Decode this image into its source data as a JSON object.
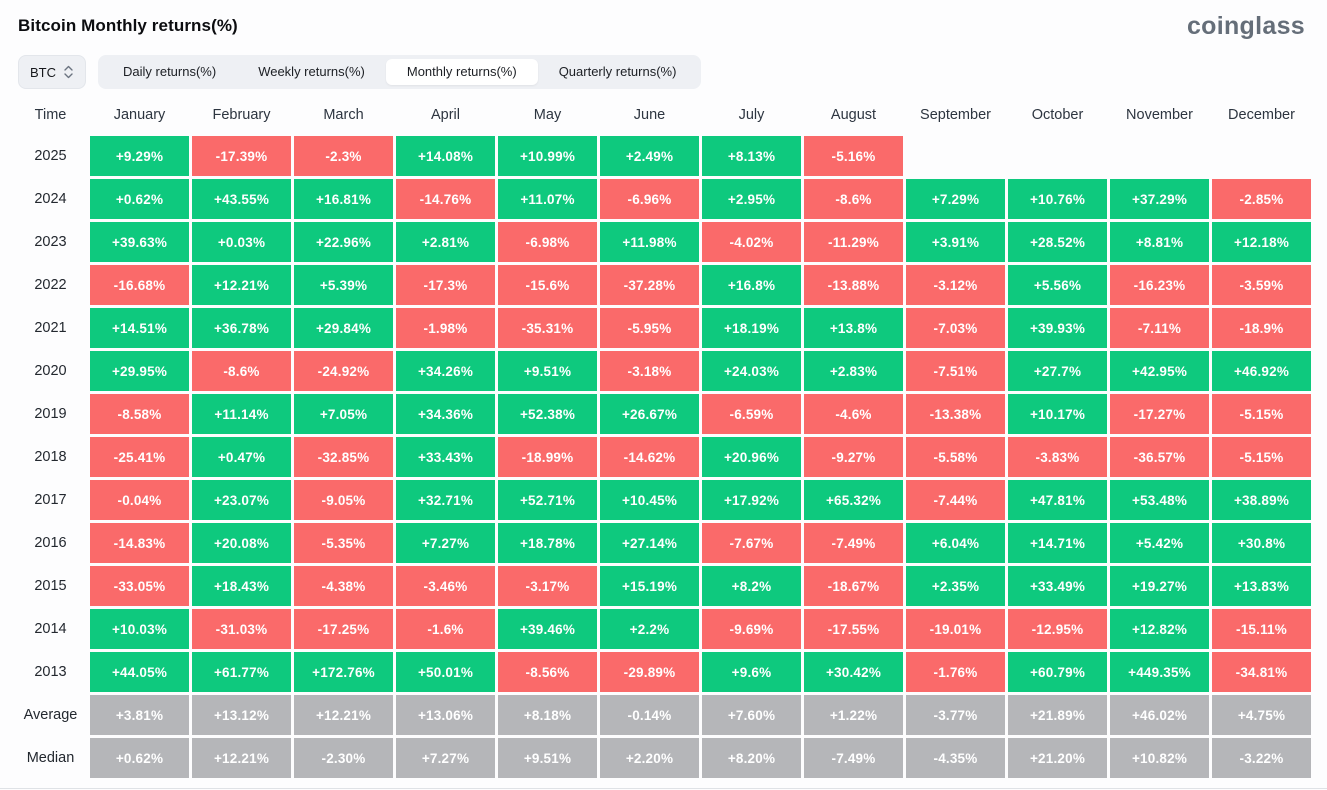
{
  "header": {
    "title": "Bitcoin Monthly returns(%)",
    "logo": "coinglass"
  },
  "controls": {
    "coin": "BTC",
    "tabs": [
      {
        "label": "Daily returns(%)",
        "active": false
      },
      {
        "label": "Weekly returns(%)",
        "active": false
      },
      {
        "label": "Monthly returns(%)",
        "active": true
      },
      {
        "label": "Quarterly returns(%)",
        "active": false
      }
    ]
  },
  "colors": {
    "positive": "#0ec97e",
    "negative": "#fa6a6a",
    "summary": "#b5b6b9"
  },
  "table": {
    "columns": [
      "Time",
      "January",
      "February",
      "March",
      "April",
      "May",
      "June",
      "July",
      "August",
      "September",
      "October",
      "November",
      "December"
    ],
    "rows": [
      {
        "label": "2025",
        "summary": false,
        "values": [
          "+9.29%",
          "-17.39%",
          "-2.3%",
          "+14.08%",
          "+10.99%",
          "+2.49%",
          "+8.13%",
          "-5.16%",
          "",
          "",
          "",
          ""
        ]
      },
      {
        "label": "2024",
        "summary": false,
        "values": [
          "+0.62%",
          "+43.55%",
          "+16.81%",
          "-14.76%",
          "+11.07%",
          "-6.96%",
          "+2.95%",
          "-8.6%",
          "+7.29%",
          "+10.76%",
          "+37.29%",
          "-2.85%"
        ]
      },
      {
        "label": "2023",
        "summary": false,
        "values": [
          "+39.63%",
          "+0.03%",
          "+22.96%",
          "+2.81%",
          "-6.98%",
          "+11.98%",
          "-4.02%",
          "-11.29%",
          "+3.91%",
          "+28.52%",
          "+8.81%",
          "+12.18%"
        ]
      },
      {
        "label": "2022",
        "summary": false,
        "values": [
          "-16.68%",
          "+12.21%",
          "+5.39%",
          "-17.3%",
          "-15.6%",
          "-37.28%",
          "+16.8%",
          "-13.88%",
          "-3.12%",
          "+5.56%",
          "-16.23%",
          "-3.59%"
        ]
      },
      {
        "label": "2021",
        "summary": false,
        "values": [
          "+14.51%",
          "+36.78%",
          "+29.84%",
          "-1.98%",
          "-35.31%",
          "-5.95%",
          "+18.19%",
          "+13.8%",
          "-7.03%",
          "+39.93%",
          "-7.11%",
          "-18.9%"
        ]
      },
      {
        "label": "2020",
        "summary": false,
        "values": [
          "+29.95%",
          "-8.6%",
          "-24.92%",
          "+34.26%",
          "+9.51%",
          "-3.18%",
          "+24.03%",
          "+2.83%",
          "-7.51%",
          "+27.7%",
          "+42.95%",
          "+46.92%"
        ]
      },
      {
        "label": "2019",
        "summary": false,
        "values": [
          "-8.58%",
          "+11.14%",
          "+7.05%",
          "+34.36%",
          "+52.38%",
          "+26.67%",
          "-6.59%",
          "-4.6%",
          "-13.38%",
          "+10.17%",
          "-17.27%",
          "-5.15%"
        ]
      },
      {
        "label": "2018",
        "summary": false,
        "values": [
          "-25.41%",
          "+0.47%",
          "-32.85%",
          "+33.43%",
          "-18.99%",
          "-14.62%",
          "+20.96%",
          "-9.27%",
          "-5.58%",
          "-3.83%",
          "-36.57%",
          "-5.15%"
        ]
      },
      {
        "label": "2017",
        "summary": false,
        "values": [
          "-0.04%",
          "+23.07%",
          "-9.05%",
          "+32.71%",
          "+52.71%",
          "+10.45%",
          "+17.92%",
          "+65.32%",
          "-7.44%",
          "+47.81%",
          "+53.48%",
          "+38.89%"
        ]
      },
      {
        "label": "2016",
        "summary": false,
        "values": [
          "-14.83%",
          "+20.08%",
          "-5.35%",
          "+7.27%",
          "+18.78%",
          "+27.14%",
          "-7.67%",
          "-7.49%",
          "+6.04%",
          "+14.71%",
          "+5.42%",
          "+30.8%"
        ]
      },
      {
        "label": "2015",
        "summary": false,
        "values": [
          "-33.05%",
          "+18.43%",
          "-4.38%",
          "-3.46%",
          "-3.17%",
          "+15.19%",
          "+8.2%",
          "-18.67%",
          "+2.35%",
          "+33.49%",
          "+19.27%",
          "+13.83%"
        ]
      },
      {
        "label": "2014",
        "summary": false,
        "values": [
          "+10.03%",
          "-31.03%",
          "-17.25%",
          "-1.6%",
          "+39.46%",
          "+2.2%",
          "-9.69%",
          "-17.55%",
          "-19.01%",
          "-12.95%",
          "+12.82%",
          "-15.11%"
        ]
      },
      {
        "label": "2013",
        "summary": false,
        "values": [
          "+44.05%",
          "+61.77%",
          "+172.76%",
          "+50.01%",
          "-8.56%",
          "-29.89%",
          "+9.6%",
          "+30.42%",
          "-1.76%",
          "+60.79%",
          "+449.35%",
          "-34.81%"
        ]
      },
      {
        "label": "Average",
        "summary": true,
        "values": [
          "+3.81%",
          "+13.12%",
          "+12.21%",
          "+13.06%",
          "+8.18%",
          "-0.14%",
          "+7.60%",
          "+1.22%",
          "-3.77%",
          "+21.89%",
          "+46.02%",
          "+4.75%"
        ]
      },
      {
        "label": "Median",
        "summary": true,
        "values": [
          "+0.62%",
          "+12.21%",
          "-2.30%",
          "+7.27%",
          "+9.51%",
          "+2.20%",
          "+8.20%",
          "-7.49%",
          "-4.35%",
          "+21.20%",
          "+10.82%",
          "-3.22%"
        ]
      }
    ]
  }
}
